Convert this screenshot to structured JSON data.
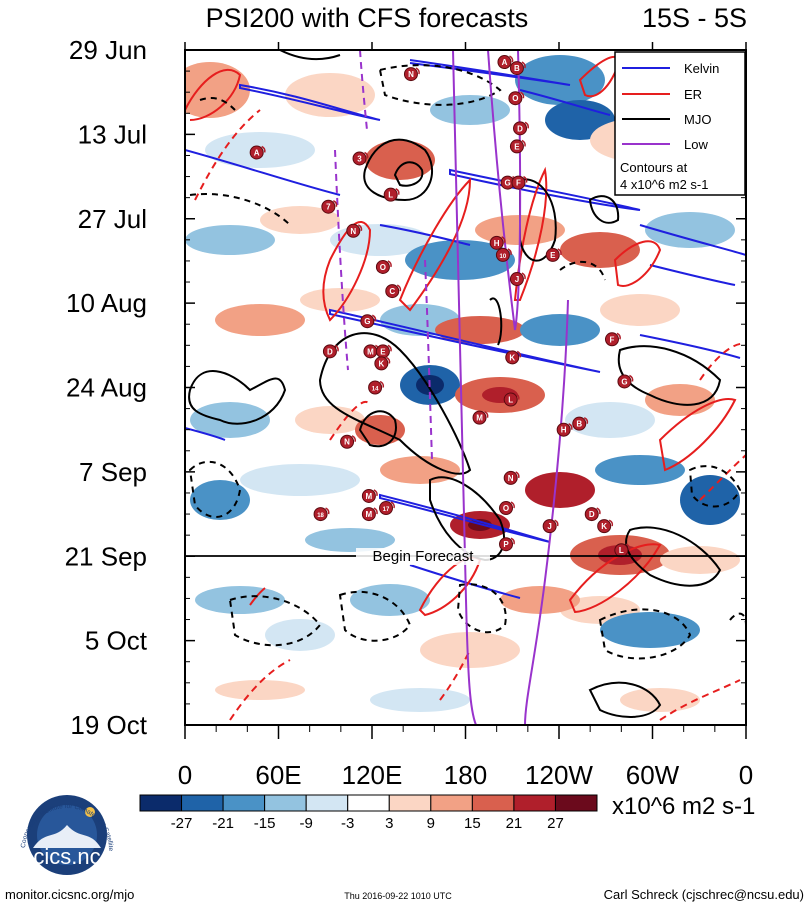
{
  "chart_data": {
    "type": "heatmap",
    "title": "PSI200 with CFS forecasts",
    "region": "15S - 5S",
    "x_tick_labels": [
      "0",
      "60E",
      "120E",
      "180",
      "120W",
      "60W",
      "0"
    ],
    "x_range_deg_east": [
      0,
      360
    ],
    "y_tick_labels": [
      "29 Jun",
      "13 Jul",
      "27 Jul",
      "10 Aug",
      "24 Aug",
      "7 Sep",
      "21 Sep",
      "5 Oct",
      "19 Oct"
    ],
    "y_range_days": [
      0,
      112
    ],
    "forecast_start_label": "Begin Forecast",
    "forecast_start_day": 84,
    "legend": {
      "items": [
        {
          "name": "Kelvin",
          "color": "#1f1fdf"
        },
        {
          "name": "ER",
          "color": "#e61e1e"
        },
        {
          "name": "MJO",
          "color": "#000000"
        },
        {
          "name": "Low",
          "color": "#9933cc"
        }
      ],
      "note_line1": "Contours at",
      "note_line2": "4 x10^6 m2 s-1"
    },
    "colorbar": {
      "levels": [
        "-27",
        "-21",
        "-15",
        "-9",
        "-3",
        "3",
        "9",
        "15",
        "21",
        "27"
      ],
      "colors": [
        "#0b2b6b",
        "#1f63a8",
        "#4a92c6",
        "#93c3e0",
        "#d3e6f3",
        "#ffffff",
        "#fbd6c4",
        "#f2a185",
        "#d9604e",
        "#b01f2b",
        "#6b0a1c"
      ],
      "units": "x10^6 m2 s-1"
    },
    "storm_markers": [
      {
        "label": "A",
        "lon": 205,
        "day": 2
      },
      {
        "label": "B",
        "lon": 213,
        "day": 3
      },
      {
        "label": "N",
        "lon": 145,
        "day": 4
      },
      {
        "label": "O",
        "lon": 212,
        "day": 8
      },
      {
        "label": "D",
        "lon": 215,
        "day": 13
      },
      {
        "label": "A",
        "lon": 46,
        "day": 17
      },
      {
        "label": "3",
        "lon": 112,
        "day": 18
      },
      {
        "label": "E",
        "lon": 213,
        "day": 16
      },
      {
        "label": "G",
        "lon": 207,
        "day": 22
      },
      {
        "label": "F",
        "lon": 214,
        "day": 22
      },
      {
        "label": "L",
        "lon": 132,
        "day": 24
      },
      {
        "label": "7",
        "lon": 92,
        "day": 26
      },
      {
        "label": "N",
        "lon": 108,
        "day": 30
      },
      {
        "label": "H",
        "lon": 200,
        "day": 32
      },
      {
        "label": "10",
        "lon": 204,
        "day": 34
      },
      {
        "label": "E",
        "lon": 236,
        "day": 34
      },
      {
        "label": "O",
        "lon": 127,
        "day": 36
      },
      {
        "label": "J",
        "lon": 213,
        "day": 38
      },
      {
        "label": "C",
        "lon": 133,
        "day": 40
      },
      {
        "label": "G",
        "lon": 117,
        "day": 45
      },
      {
        "label": "F",
        "lon": 274,
        "day": 48
      },
      {
        "label": "D",
        "lon": 93,
        "day": 50
      },
      {
        "label": "M",
        "lon": 119,
        "day": 50
      },
      {
        "label": "E",
        "lon": 127,
        "day": 50
      },
      {
        "label": "K",
        "lon": 126,
        "day": 52
      },
      {
        "label": "K",
        "lon": 210,
        "day": 51
      },
      {
        "label": "14",
        "lon": 122,
        "day": 56
      },
      {
        "label": "G",
        "lon": 282,
        "day": 55
      },
      {
        "label": "L",
        "lon": 209,
        "day": 58
      },
      {
        "label": "M",
        "lon": 189,
        "day": 61
      },
      {
        "label": "H",
        "lon": 243,
        "day": 63
      },
      {
        "label": "B",
        "lon": 253,
        "day": 62
      },
      {
        "label": "N",
        "lon": 104,
        "day": 65
      },
      {
        "label": "N",
        "lon": 209,
        "day": 71
      },
      {
        "label": "M",
        "lon": 118,
        "day": 74
      },
      {
        "label": "O",
        "lon": 206,
        "day": 76
      },
      {
        "label": "18",
        "lon": 87,
        "day": 77
      },
      {
        "label": "M",
        "lon": 118,
        "day": 77
      },
      {
        "label": "17",
        "lon": 129,
        "day": 76
      },
      {
        "label": "D",
        "lon": 261,
        "day": 77
      },
      {
        "label": "J",
        "lon": 234,
        "day": 79
      },
      {
        "label": "K",
        "lon": 269,
        "day": 79
      },
      {
        "label": "P",
        "lon": 206,
        "day": 82
      },
      {
        "label": "L",
        "lon": 280,
        "day": 83
      }
    ]
  },
  "footer": {
    "logo_text": "cics.nc",
    "logo_ring_text": "Cooperative Institute for Climate and Satellites",
    "url": "monitor.cicsnc.org/mjo",
    "timestamp": "Thu 2016-09-22 1010 UTC",
    "author": "Carl Schreck (cjschrec@ncsu.edu)"
  }
}
